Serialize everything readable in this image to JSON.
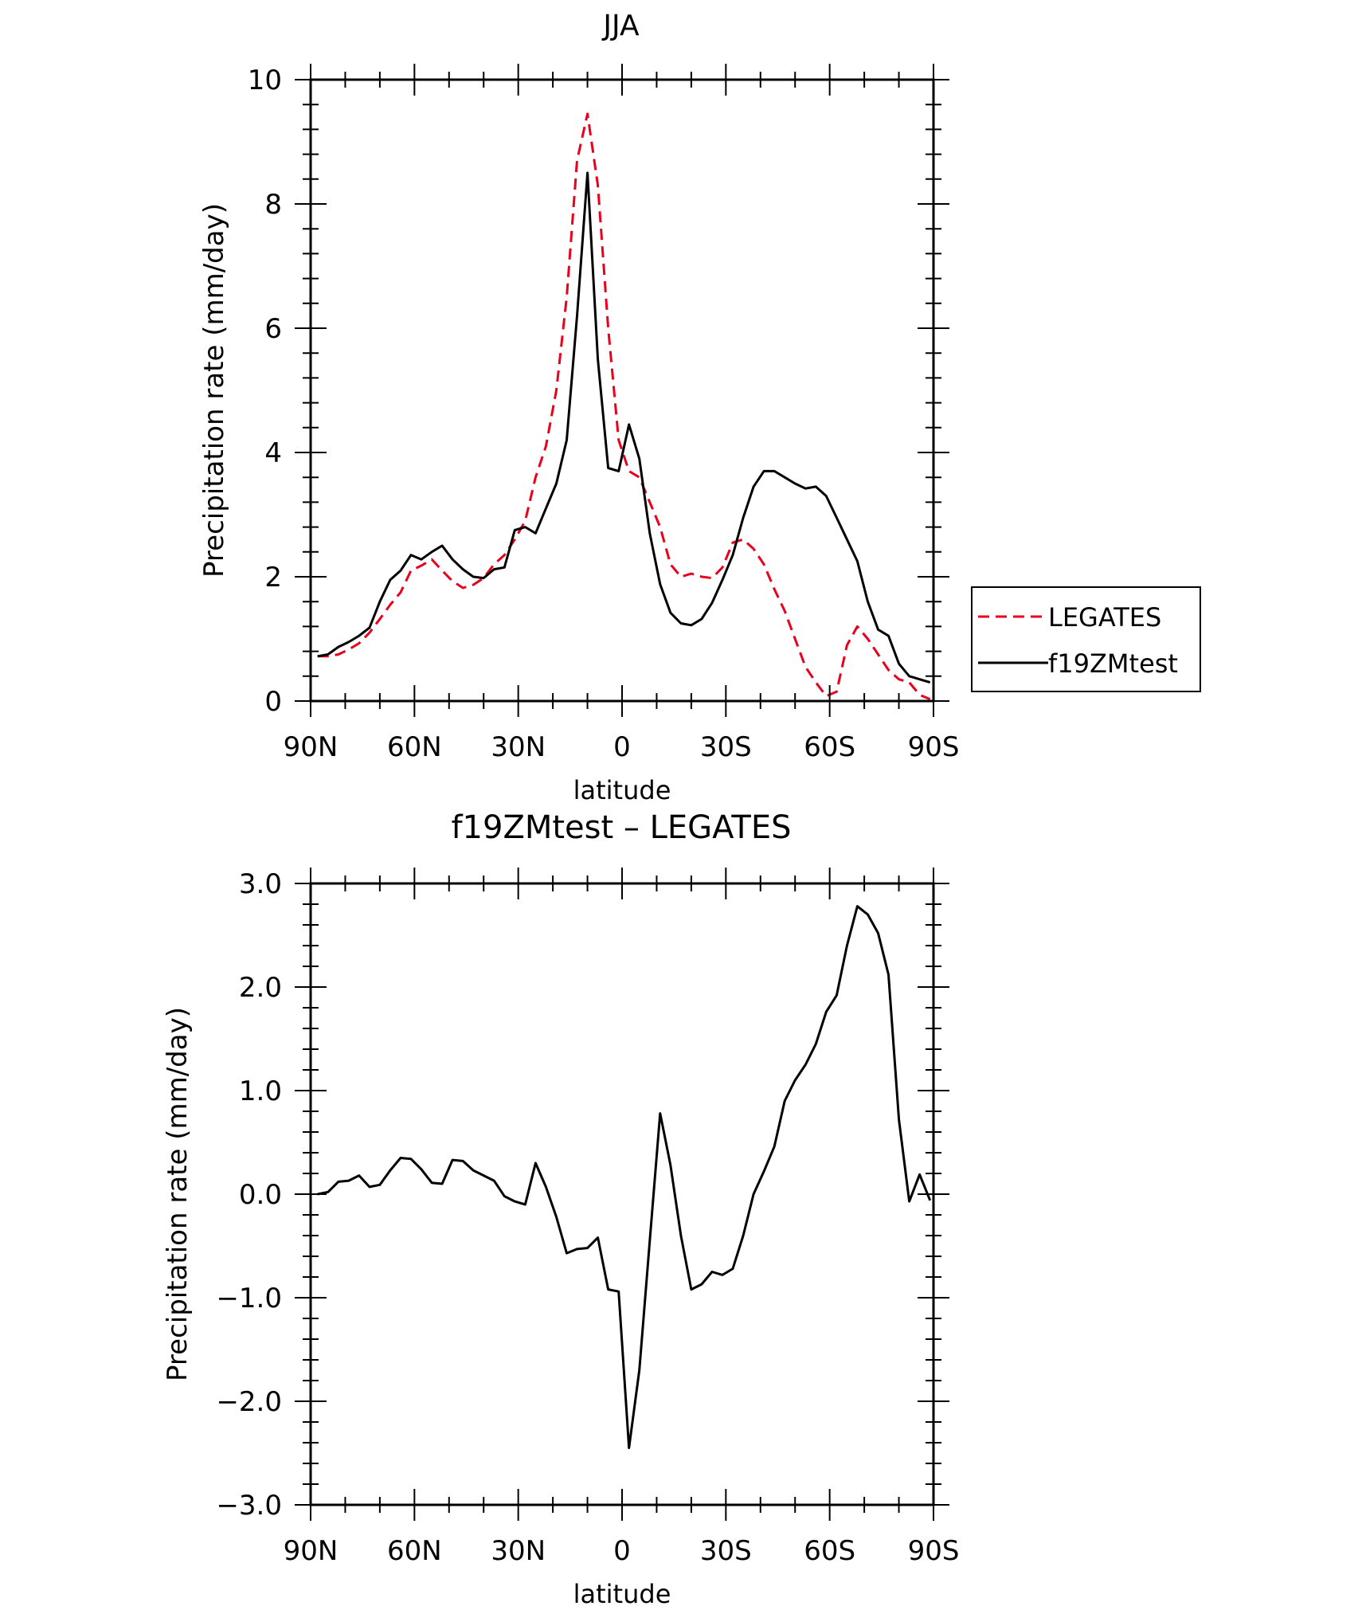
{
  "chart_data": [
    {
      "type": "line",
      "title": "JJA",
      "xlabel": "latitude",
      "ylabel": "Precipitation rate (mm/day)",
      "xlim": [
        90,
        -90
      ],
      "ylim": [
        0,
        10
      ],
      "xticks": [
        90,
        60,
        30,
        0,
        -30,
        -60,
        -90
      ],
      "xtick_labels": [
        "90N",
        "60N",
        "30N",
        "0",
        "30S",
        "60S",
        "90S"
      ],
      "yticks": [
        0,
        2,
        4,
        6,
        8,
        10
      ],
      "ytick_labels": [
        "0",
        "2",
        "4",
        "6",
        "8",
        "10"
      ],
      "legend_position": "right",
      "series": [
        {
          "name": "LEGATES",
          "color": "#e8001c",
          "style": "dashed",
          "x": [
            88,
            85,
            82,
            79,
            76,
            73,
            70,
            67,
            64,
            61,
            58,
            55,
            52,
            49,
            46,
            43,
            40,
            37,
            34,
            31,
            28,
            25,
            22,
            19,
            16,
            13,
            10,
            7,
            4,
            1,
            -2,
            -5,
            -8,
            -11,
            -14,
            -17,
            -20,
            -23,
            -26,
            -29,
            -32,
            -35,
            -38,
            -41,
            -44,
            -47,
            -50,
            -53,
            -56,
            -59,
            -62,
            -65,
            -68,
            -71,
            -74,
            -77,
            -80,
            -83,
            -86,
            -89
          ],
          "y": [
            0.72,
            0.72,
            0.75,
            0.83,
            0.93,
            1.1,
            1.32,
            1.55,
            1.75,
            2.1,
            2.18,
            2.28,
            2.1,
            1.93,
            1.82,
            1.87,
            1.98,
            2.2,
            2.35,
            2.6,
            2.9,
            3.6,
            4.1,
            5.0,
            6.5,
            8.7,
            9.45,
            8.3,
            6.0,
            4.2,
            3.7,
            3.6,
            3.2,
            2.8,
            2.2,
            2.0,
            2.05,
            2.0,
            1.98,
            2.15,
            2.55,
            2.6,
            2.45,
            2.2,
            1.8,
            1.45,
            1.0,
            0.55,
            0.3,
            0.08,
            0.15,
            0.9,
            1.2,
            1.0,
            0.75,
            0.5,
            0.35,
            0.3,
            0.1,
            0.03
          ]
        },
        {
          "name": "f19ZMtest",
          "color": "#000000",
          "style": "solid",
          "x": [
            88,
            85,
            82,
            79,
            76,
            73,
            70,
            67,
            64,
            61,
            58,
            55,
            52,
            49,
            46,
            43,
            40,
            37,
            34,
            31,
            28,
            25,
            22,
            19,
            16,
            13,
            10,
            7,
            4,
            1,
            -2,
            -5,
            -8,
            -11,
            -14,
            -17,
            -20,
            -23,
            -26,
            -29,
            -32,
            -35,
            -38,
            -41,
            -44,
            -47,
            -50,
            -53,
            -56,
            -59,
            -62,
            -65,
            -68,
            -71,
            -74,
            -77,
            -80,
            -83,
            -86,
            -89
          ],
          "y": [
            0.72,
            0.75,
            0.87,
            0.95,
            1.05,
            1.18,
            1.6,
            1.95,
            2.1,
            2.35,
            2.28,
            2.4,
            2.5,
            2.28,
            2.12,
            2.0,
            1.98,
            2.12,
            2.15,
            2.75,
            2.8,
            2.7,
            3.1,
            3.5,
            4.2,
            6.2,
            8.5,
            5.5,
            3.75,
            3.7,
            4.45,
            3.9,
            2.7,
            1.88,
            1.42,
            1.25,
            1.22,
            1.32,
            1.58,
            1.95,
            2.35,
            2.95,
            3.45,
            3.7,
            3.7,
            3.6,
            3.5,
            3.42,
            3.45,
            3.3,
            2.95,
            2.6,
            2.25,
            1.6,
            1.15,
            1.05,
            0.6,
            0.4,
            0.35,
            0.3
          ]
        }
      ]
    },
    {
      "type": "line",
      "title": "f19ZMtest – LEGATES",
      "xlabel": "latitude",
      "ylabel": "Precipitation rate (mm/day)",
      "xlim": [
        90,
        -90
      ],
      "ylim": [
        -3,
        3
      ],
      "xticks": [
        90,
        60,
        30,
        0,
        -30,
        -60,
        -90
      ],
      "xtick_labels": [
        "90N",
        "60N",
        "30N",
        "0",
        "30S",
        "60S",
        "90S"
      ],
      "yticks": [
        -3,
        -2,
        -1,
        0,
        1,
        2,
        3
      ],
      "ytick_labels": [
        "−3.0",
        "−2.0",
        "−1.0",
        "0.0",
        "1.0",
        "2.0",
        "3.0"
      ],
      "series": [
        {
          "color": "#000000",
          "style": "solid",
          "x": [
            88,
            85,
            82,
            79,
            76,
            73,
            70,
            67,
            64,
            61,
            58,
            55,
            52,
            49,
            46,
            43,
            40,
            37,
            34,
            31,
            28,
            25,
            22,
            19,
            16,
            13,
            10,
            7,
            4,
            1,
            -2,
            -5,
            -8,
            -11,
            -14,
            -17,
            -20,
            -23,
            -26,
            -29,
            -32,
            -35,
            -38,
            -41,
            -44,
            -47,
            -50,
            -53,
            -56,
            -59,
            -62,
            -65,
            -68,
            -71,
            -74,
            -77,
            -80,
            -83,
            -86,
            -89
          ],
          "y": [
            0.0,
            0.02,
            0.12,
            0.13,
            0.18,
            0.07,
            0.09,
            0.23,
            0.35,
            0.34,
            0.24,
            0.11,
            0.1,
            0.33,
            0.32,
            0.23,
            0.18,
            0.13,
            -0.02,
            -0.07,
            -0.1,
            0.3,
            0.07,
            -0.22,
            -0.57,
            -0.53,
            -0.52,
            -0.42,
            -0.92,
            -0.94,
            -2.45,
            -1.7,
            -0.45,
            0.78,
            0.28,
            -0.4,
            -0.92,
            -0.87,
            -0.75,
            -0.78,
            -0.72,
            -0.4,
            0.0,
            0.22,
            0.46,
            0.9,
            1.1,
            1.25,
            1.45,
            1.76,
            1.92,
            2.4,
            2.78,
            2.7,
            2.52,
            2.12,
            0.72,
            -0.07,
            0.19,
            -0.06
          ]
        }
      ]
    }
  ]
}
